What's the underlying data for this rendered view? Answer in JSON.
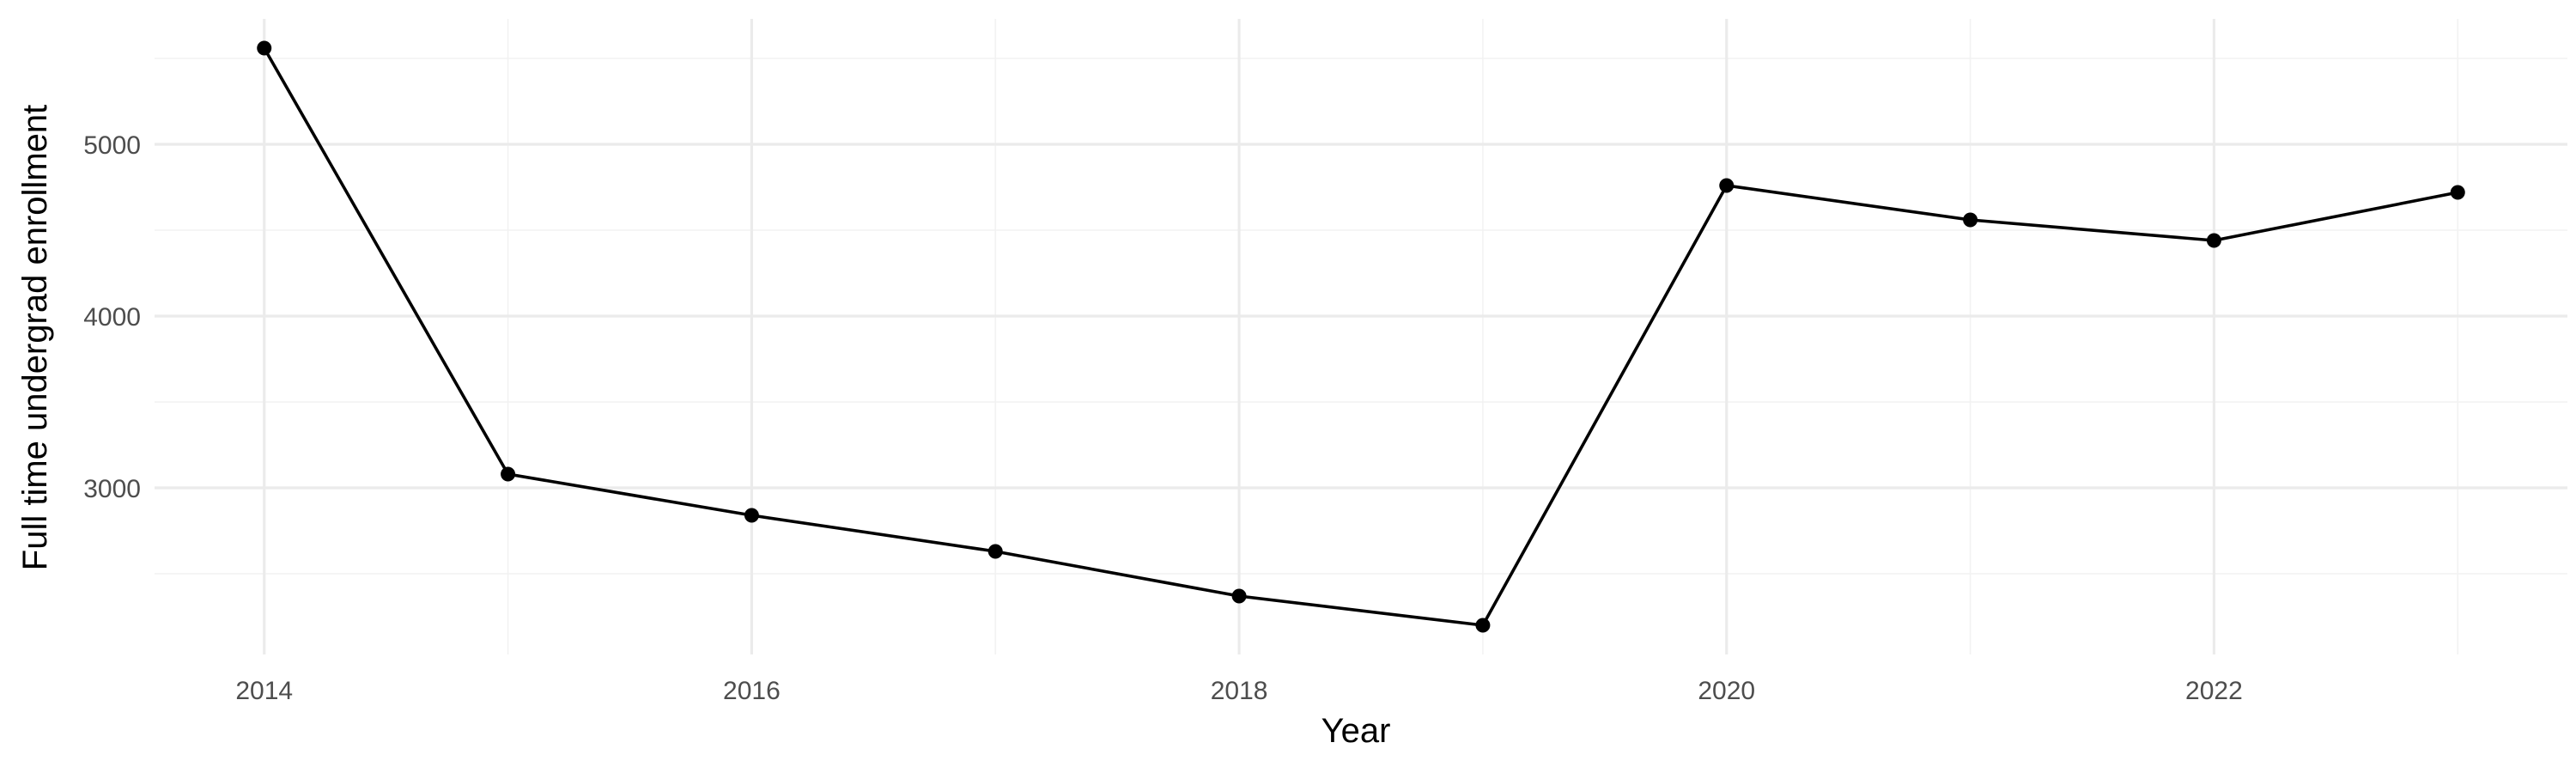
{
  "chart_data": {
    "type": "line",
    "title": "",
    "xlabel": "Year",
    "ylabel": "Full time undergrad enrollment",
    "x": [
      2014,
      2015,
      2016,
      2017,
      2018,
      2019,
      2020,
      2021,
      2022,
      2023
    ],
    "series": [
      {
        "values": [
          5560,
          3080,
          2840,
          2630,
          2370,
          2200,
          4760,
          4560,
          4440,
          4720
        ]
      }
    ],
    "xlim": [
      2013.55,
      2023.45
    ],
    "ylim": [
      2030,
      5730
    ],
    "x_ticks": [
      2014,
      2016,
      2018,
      2020,
      2022
    ],
    "x_tick_labels": [
      "2014",
      "2016",
      "2018",
      "2020",
      "2022"
    ],
    "x_minor_ticks": [
      2015,
      2017,
      2019,
      2021,
      2023
    ],
    "y_ticks": [
      3000,
      4000,
      5000
    ],
    "y_tick_labels": [
      "3000",
      "4000",
      "5000"
    ],
    "y_minor_ticks": [
      2500,
      3500,
      4500,
      5500
    ],
    "grid": true,
    "legend": "none",
    "colors": {
      "line": "#000000",
      "point": "#000000",
      "grid_major": "#ebebeb",
      "grid_minor": "#f2f2f2",
      "tick_text": "#4d4d4d"
    }
  }
}
